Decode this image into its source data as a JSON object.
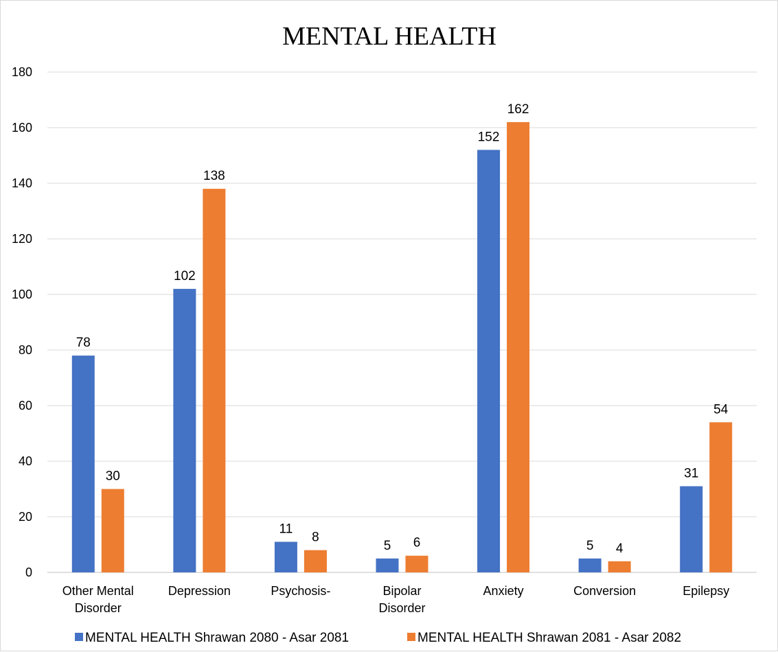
{
  "chart_data": {
    "type": "bar",
    "title": "MENTAL HEALTH",
    "categories": [
      [
        "Other Mental",
        "Disorder"
      ],
      [
        "Depression"
      ],
      [
        "Psychosis-"
      ],
      [
        "Bipolar",
        "Disorder"
      ],
      [
        "Anxiety"
      ],
      [
        "Conversion"
      ],
      [
        "Epilepsy"
      ]
    ],
    "series": [
      {
        "name": "MENTAL HEALTH Shrawan 2080 - Asar 2081",
        "color": "#4472c4",
        "values": [
          78,
          102,
          11,
          5,
          152,
          5,
          31
        ]
      },
      {
        "name": "MENTAL HEALTH Shrawan 2081 - Asar 2082",
        "color": "#ed7d31",
        "values": [
          30,
          138,
          8,
          6,
          162,
          4,
          54
        ]
      }
    ],
    "ylim": [
      0,
      180
    ],
    "yticks": [
      0,
      20,
      40,
      60,
      80,
      100,
      120,
      140,
      160,
      180
    ],
    "grid": true,
    "legend_position": "bottom",
    "data_labels": true
  }
}
